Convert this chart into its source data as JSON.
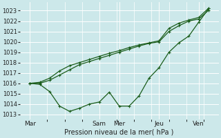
{
  "background_color": "#cce8ea",
  "grid_color": "#ffffff",
  "line_color": "#1a5c1a",
  "xlabel": "Pression niveau de la mer( hPa )",
  "ylim": [
    1012.5,
    1023.8
  ],
  "yticks": [
    1013,
    1014,
    1015,
    1016,
    1017,
    1018,
    1019,
    1020,
    1021,
    1022,
    1023
  ],
  "day_labels": [
    "Mar",
    "Sam",
    "Mer",
    "Jeu",
    "Ven"
  ],
  "day_positions": [
    0.5,
    4.0,
    5.0,
    7.0,
    9.0
  ],
  "vline_positions": [
    0.5,
    4.0,
    5.0,
    7.0,
    9.0
  ],
  "xlim": [
    0,
    10.0
  ],
  "line_upper1_x": [
    0.5,
    1.0,
    1.5,
    2.0,
    2.5,
    3.0,
    3.5,
    4.0,
    4.5,
    5.0,
    5.5,
    6.0,
    6.5,
    7.0,
    7.5,
    8.0,
    8.5,
    9.0,
    9.5
  ],
  "line_upper1_y": [
    1016.0,
    1016.0,
    1016.3,
    1016.8,
    1017.3,
    1017.8,
    1018.1,
    1018.4,
    1018.7,
    1019.0,
    1019.3,
    1019.6,
    1019.85,
    1020.0,
    1021.0,
    1021.55,
    1022.0,
    1022.2,
    1023.05
  ],
  "line_upper2_x": [
    0.5,
    1.0,
    1.5,
    2.0,
    2.5,
    3.0,
    3.5,
    4.0,
    4.5,
    5.0,
    5.5,
    6.0,
    6.5,
    7.0,
    7.5,
    8.0,
    8.5,
    9.0,
    9.5
  ],
  "line_upper2_y": [
    1016.0,
    1016.1,
    1016.5,
    1017.2,
    1017.7,
    1018.0,
    1018.3,
    1018.6,
    1018.9,
    1019.15,
    1019.45,
    1019.7,
    1019.9,
    1020.1,
    1021.3,
    1021.8,
    1022.1,
    1022.35,
    1023.25
  ],
  "line_lower_x": [
    0.5,
    1.0,
    1.5,
    2.0,
    2.5,
    3.0,
    3.5,
    4.0,
    4.5,
    5.0,
    5.5,
    6.0,
    6.5,
    7.0,
    7.5,
    8.0,
    8.5,
    9.0,
    9.5
  ],
  "line_lower_y": [
    1016.0,
    1015.9,
    1015.2,
    1013.8,
    1013.3,
    1013.6,
    1014.0,
    1014.2,
    1015.15,
    1013.8,
    1013.8,
    1014.8,
    1016.5,
    1017.5,
    1019.0,
    1019.9,
    1020.55,
    1021.9,
    1023.2
  ]
}
